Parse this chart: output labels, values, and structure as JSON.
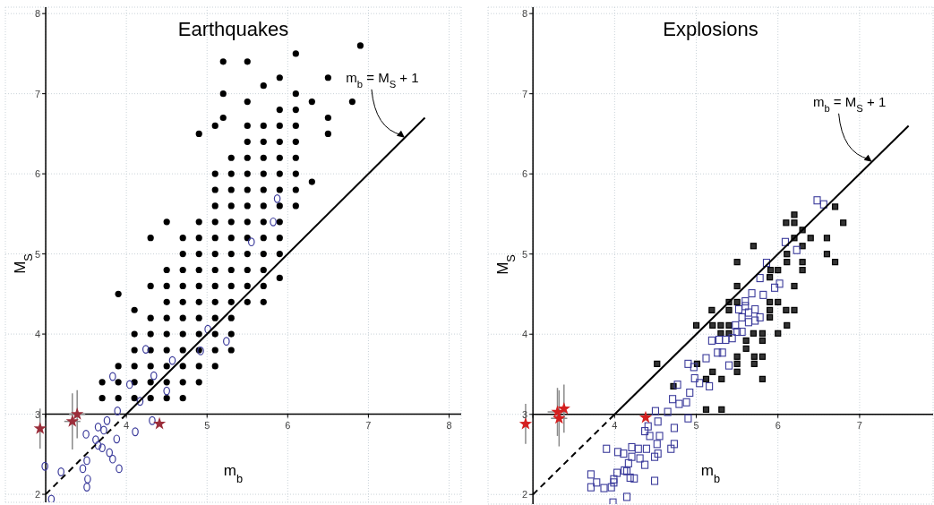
{
  "chart_data": [
    {
      "type": "scatter",
      "title": "Earthquakes",
      "xlabel": "m$_{b}$",
      "ylabel": "M$_{S}$",
      "annotations": [
        {
          "text": "m$_{b}$ = M$_{S}$ + 1",
          "x": 7.45,
          "y": 6.45
        }
      ],
      "xlim": [
        2.5,
        8.15
      ],
      "ylim": [
        1.9,
        8.08
      ],
      "xticks": [
        {
          "value": 3,
          "label": null
        },
        4,
        5,
        6,
        7,
        8
      ],
      "yticks": [
        2,
        3,
        4,
        5,
        6,
        7,
        8
      ],
      "grid": true,
      "series": [
        {
          "color": "#000000",
          "marker": "circle",
          "x": [
            3.7,
            3.7,
            3.9,
            3.9,
            3.9,
            3.9,
            4.1,
            4.1,
            4.1,
            4.1,
            4.1,
            4.1,
            4.3,
            4.3,
            4.3,
            4.3,
            4.3,
            4.3,
            4.3,
            4.3,
            4.5,
            4.5,
            4.5,
            4.5,
            4.5,
            4.5,
            4.5,
            4.5,
            4.5,
            4.5,
            4.7,
            4.7,
            4.7,
            4.7,
            4.7,
            4.7,
            4.7,
            4.7,
            4.7,
            4.7,
            4.7,
            4.9,
            4.9,
            4.9,
            4.9,
            4.9,
            4.9,
            4.9,
            4.9,
            4.9,
            4.9,
            4.9,
            4.9,
            5.1,
            5.1,
            5.1,
            5.1,
            5.1,
            5.1,
            5.1,
            5.1,
            5.1,
            5.1,
            5.1,
            5.1,
            5.1,
            5.1,
            5.3,
            5.3,
            5.3,
            5.3,
            5.3,
            5.3,
            5.3,
            5.3,
            5.3,
            5.3,
            5.3,
            5.3,
            5.3,
            5.5,
            5.5,
            5.5,
            5.5,
            5.5,
            5.5,
            5.5,
            5.5,
            5.5,
            5.5,
            5.5,
            5.5,
            5.5,
            5.5,
            5.7,
            5.7,
            5.7,
            5.7,
            5.7,
            5.7,
            5.7,
            5.7,
            5.7,
            5.7,
            5.7,
            5.7,
            5.7,
            5.9,
            5.9,
            5.9,
            5.9,
            5.9,
            5.9,
            5.9,
            5.9,
            5.9,
            5.9,
            5.9,
            5.9,
            6.1,
            6.1,
            6.1,
            6.1,
            6.1,
            6.1,
            6.1,
            6.1,
            6.1,
            6.3,
            6.3,
            6.5,
            6.5,
            6.5,
            6.8,
            6.9,
            5.2,
            5.2,
            5.2
          ],
          "values": [
            3.2,
            3.4,
            3.2,
            3.4,
            3.6,
            4.5,
            3.2,
            3.4,
            3.6,
            3.8,
            4.0,
            4.3,
            3.2,
            3.4,
            3.6,
            3.8,
            4.0,
            4.2,
            4.6,
            5.2,
            3.2,
            3.4,
            3.6,
            3.8,
            4.0,
            4.2,
            4.4,
            4.6,
            4.8,
            5.4,
            3.2,
            3.4,
            3.6,
            3.8,
            4.0,
            4.2,
            4.4,
            4.6,
            4.8,
            5.0,
            5.2,
            3.4,
            3.6,
            3.8,
            4.0,
            4.2,
            4.4,
            4.6,
            4.8,
            5.0,
            5.2,
            5.4,
            6.5,
            3.6,
            3.8,
            4.0,
            4.2,
            4.4,
            4.6,
            4.8,
            5.0,
            5.2,
            5.4,
            5.6,
            5.8,
            6.0,
            6.6,
            3.8,
            4.0,
            4.2,
            4.4,
            4.6,
            4.8,
            5.0,
            5.2,
            5.4,
            5.6,
            5.8,
            6.0,
            6.2,
            4.4,
            4.6,
            4.8,
            5.0,
            5.2,
            5.4,
            5.6,
            5.8,
            6.0,
            6.2,
            6.4,
            6.6,
            6.9,
            7.4,
            4.4,
            4.6,
            4.8,
            5.0,
            5.2,
            5.4,
            5.6,
            5.8,
            6.0,
            6.2,
            6.4,
            6.6,
            7.1,
            4.7,
            5.0,
            5.2,
            5.4,
            5.6,
            5.8,
            6.0,
            6.2,
            6.4,
            6.6,
            6.8,
            7.2,
            5.6,
            5.8,
            6.0,
            6.2,
            6.4,
            6.6,
            6.8,
            7.0,
            7.5,
            5.9,
            6.9,
            6.5,
            6.7,
            7.2,
            6.9,
            7.6,
            7.0,
            7.4,
            6.7
          ]
        },
        {
          "color": "#3b3b9b",
          "marker": "circle",
          "x": [
            2.99,
            3.07,
            3.19,
            3.5,
            3.65,
            3.72,
            3.76,
            3.62,
            3.65,
            3.7,
            3.51,
            3.46,
            3.52,
            3.51,
            3.79,
            3.83,
            3.91,
            3.88,
            3.89,
            4.11,
            4.32,
            3.83,
            4.04,
            4.17,
            4.24,
            4.34,
            4.5,
            4.57,
            4.92,
            5.01,
            5.24,
            5.55,
            5.82,
            5.87
          ],
          "values": [
            2.35,
            1.94,
            2.28,
            2.75,
            2.84,
            2.8,
            2.92,
            2.68,
            2.61,
            2.58,
            2.42,
            2.32,
            2.19,
            2.09,
            2.52,
            2.44,
            2.32,
            2.69,
            3.04,
            2.78,
            2.92,
            3.47,
            3.37,
            3.16,
            3.81,
            3.48,
            3.29,
            3.67,
            3.79,
            4.06,
            3.91,
            5.15,
            5.4,
            5.69
          ]
        },
        {
          "color": "#9b2d3a",
          "marker": "star",
          "x": [
            2.93,
            3.33,
            3.39,
            4.41
          ],
          "values": [
            2.82,
            2.91,
            3.0,
            2.88
          ],
          "errors": [
            0.25,
            0.35,
            0.3,
            null
          ],
          "xerrors": [
            null,
            0.1,
            0.1,
            null
          ]
        },
        {
          "type": "line",
          "color": "#000000",
          "line_style": "dashed",
          "marker": "none",
          "x": [
            3,
            4
          ],
          "values": [
            2,
            3
          ]
        },
        {
          "type": "line",
          "color": "#000000",
          "line_style": "solid",
          "marker": "none",
          "x": [
            4,
            7.7
          ],
          "values": [
            3,
            6.7
          ]
        }
      ]
    },
    {
      "type": "scatter",
      "title": "Explosions",
      "xlabel": "m$_{b}$",
      "ylabel": "M$_{S}$",
      "annotations": [
        {
          "text": "m$_{b}$ = M$_{S}$ + 1",
          "x": 7.15,
          "y": 6.15
        }
      ],
      "xlim": [
        2.45,
        7.9
      ],
      "ylim": [
        1.88,
        8.08
      ],
      "xticks": [
        {
          "value": 3,
          "label": null
        },
        4,
        5,
        6,
        7
      ],
      "yticks": [
        2,
        3,
        4,
        5,
        6,
        7,
        8
      ],
      "grid": true,
      "series": [
        {
          "color": "#000000",
          "marker": "square",
          "x": [
            6.7,
            6.2,
            6.1,
            6.2,
            6.8,
            6.3,
            6.2,
            6.4,
            6.6,
            5.7,
            6.3,
            6.11,
            6.6,
            5.5,
            6.11,
            6.3,
            6.7,
            5.91,
            6.0,
            6.3,
            5.9,
            5.5,
            6.2,
            5.4,
            5.5,
            5.9,
            6.0,
            5.19,
            5.4,
            5.9,
            6.1,
            6.2,
            5.9,
            5.0,
            5.2,
            5.3,
            5.4,
            6.11,
            5.3,
            5.4,
            5.7,
            5.81,
            6.0,
            5.61,
            5.81,
            5.61,
            5.5,
            5.71,
            5.81,
            5.5,
            5.71,
            4.52,
            5.01,
            5.5,
            5.2,
            5.12,
            5.31,
            5.81,
            4.72,
            5.12,
            5.31
          ],
          "values": [
            5.59,
            5.49,
            5.39,
            5.39,
            5.39,
            5.3,
            5.2,
            5.2,
            5.2,
            5.1,
            5.1,
            5.0,
            5.0,
            4.9,
            4.9,
            4.9,
            4.9,
            4.8,
            4.8,
            4.8,
            4.71,
            4.6,
            4.6,
            4.4,
            4.4,
            4.4,
            4.4,
            4.3,
            4.3,
            4.3,
            4.3,
            4.3,
            4.21,
            4.11,
            4.11,
            4.11,
            4.11,
            4.11,
            4.01,
            4.01,
            4.01,
            4.01,
            4.01,
            3.92,
            3.92,
            3.82,
            3.72,
            3.72,
            3.72,
            3.63,
            3.63,
            3.63,
            3.63,
            3.53,
            3.53,
            3.44,
            3.44,
            3.44,
            3.35,
            3.06,
            3.06
          ]
        },
        {
          "color": "#3b3b9b",
          "marker": "square",
          "x": [
            6.48,
            6.56,
            6.09,
            6.23,
            5.86,
            5.78,
            6.02,
            5.96,
            5.68,
            5.82,
            5.6,
            5.52,
            5.72,
            5.56,
            5.64,
            5.48,
            5.44,
            5.36,
            5.28,
            5.19,
            5.12,
            5.26,
            5.32,
            5.4,
            4.97,
            4.98,
            5.04,
            5.16,
            4.77,
            4.92,
            4.71,
            4.79,
            4.88,
            4.65,
            4.5,
            4.53,
            4.41,
            4.43,
            4.55,
            4.37,
            4.52,
            4.73,
            4.9,
            4.73,
            4.69,
            4.53,
            4.49,
            4.39,
            4.29,
            4.21,
            4.11,
            4.04,
            4.21,
            4.31,
            4.37,
            4.17,
            4.15,
            4.12,
            4.19,
            4.24,
            4.03,
            3.99,
            3.9,
            3.71,
            3.78,
            3.71,
            3.87,
            3.96,
            3.99,
            4.15,
            3.98,
            4.49,
            4.9,
            5.56,
            5.6,
            5.72,
            5.78,
            5.64,
            5.5
          ],
          "values": [
            5.67,
            5.62,
            5.15,
            5.05,
            4.89,
            4.7,
            4.63,
            4.58,
            4.51,
            4.49,
            4.41,
            4.31,
            4.31,
            4.21,
            4.15,
            4.11,
            3.95,
            3.93,
            3.93,
            3.92,
            3.7,
            3.77,
            3.77,
            3.61,
            3.59,
            3.45,
            3.39,
            3.35,
            3.37,
            3.27,
            3.19,
            3.13,
            3.15,
            3.03,
            3.04,
            2.91,
            2.85,
            2.73,
            2.73,
            2.79,
            2.63,
            2.83,
            2.95,
            2.63,
            2.57,
            2.51,
            2.47,
            2.57,
            2.57,
            2.59,
            2.51,
            2.53,
            2.47,
            2.45,
            2.37,
            2.39,
            2.29,
            2.3,
            2.21,
            2.2,
            2.27,
            2.19,
            2.57,
            2.25,
            2.15,
            2.09,
            2.08,
            2.09,
            2.15,
            1.97,
            1.9,
            2.17,
            3.63,
            4.03,
            4.35,
            4.17,
            4.21,
            4.27,
            4.03
          ]
        },
        {
          "color": "#d42020",
          "marker": "star",
          "x": [
            2.91,
            3.3,
            3.38,
            3.32,
            4.38
          ],
          "values": [
            2.88,
            3.03,
            3.07,
            2.95,
            2.96
          ],
          "errors": [
            0.25,
            0.3,
            0.3,
            0.35,
            null
          ],
          "xerrors": [
            null,
            0.12,
            null,
            0.1,
            null
          ]
        },
        {
          "type": "line",
          "color": "#000000",
          "line_style": "dashed",
          "marker": "none",
          "x": [
            3,
            4
          ],
          "values": [
            2,
            3
          ]
        },
        {
          "type": "line",
          "color": "#000000",
          "line_style": "solid",
          "marker": "none",
          "x": [
            4,
            7.6
          ],
          "values": [
            3,
            6.6
          ]
        }
      ]
    }
  ]
}
